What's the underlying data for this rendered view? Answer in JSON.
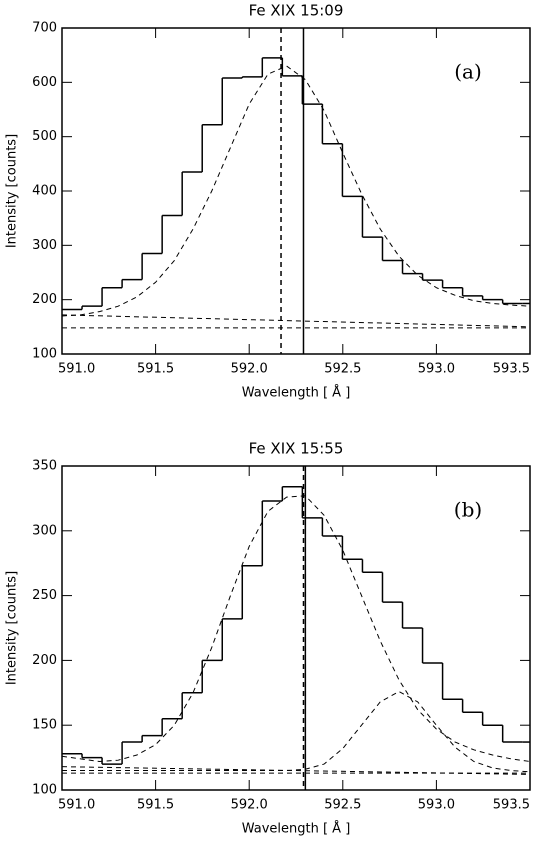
{
  "chart_data": [
    {
      "type": "spectrum",
      "title": "Fe XIX 15:09",
      "annotation": "(a)",
      "x_label": "Wavelength [ Å ]",
      "y_label": "Intensity [counts]",
      "xlim": [
        591.0,
        593.5
      ],
      "ylim": [
        100,
        700
      ],
      "xticks": [
        {
          "value": 591.0,
          "label": "591.0"
        },
        591.5,
        {
          "value": 592.0,
          "label": "592.0"
        },
        592.5,
        {
          "value": 593.0,
          "label": "593.0"
        },
        593.5
      ],
      "yticks": [
        100,
        200,
        300,
        400,
        500,
        600,
        700
      ],
      "bins": [
        591.0,
        591.107,
        591.214,
        591.321,
        591.428,
        591.535,
        591.642,
        591.749,
        591.856,
        591.963,
        592.07,
        592.177,
        592.284,
        592.391,
        592.498,
        592.605,
        592.712,
        592.819,
        592.926,
        593.033,
        593.14,
        593.247,
        593.354,
        593.461
      ],
      "counts": [
        182,
        188,
        222,
        237,
        285,
        355,
        435,
        522,
        608,
        610,
        645,
        612,
        560,
        487,
        390,
        315,
        272,
        248,
        236,
        222,
        207,
        200,
        193
      ],
      "series": [
        {
          "dashed": true,
          "x": [
            591.0,
            591.1,
            591.2,
            591.3,
            591.4,
            591.5,
            591.6,
            591.7,
            591.8,
            591.9,
            592.0,
            592.1,
            592.2,
            592.3,
            592.4,
            592.5,
            592.6,
            592.7,
            592.8,
            592.9,
            593.0,
            593.1,
            593.2,
            593.3,
            593.4,
            593.5
          ],
          "values": [
            170,
            172,
            178,
            188,
            205,
            232,
            272,
            330,
            400,
            480,
            560,
            615,
            630,
            605,
            548,
            470,
            395,
            330,
            280,
            245,
            222,
            208,
            198,
            193,
            190,
            188
          ]
        },
        {
          "dashed": true,
          "x": [
            591.0,
            593.5
          ],
          "values": [
            172,
            150
          ]
        },
        {
          "dashed": true,
          "x": [
            591.0,
            593.5
          ],
          "values": [
            148,
            148
          ]
        }
      ],
      "vlines": [
        {
          "x": 592.17,
          "dashed": true
        },
        {
          "x": 592.29,
          "dashed": false
        }
      ]
    },
    {
      "type": "spectrum",
      "title": "Fe XIX 15:55",
      "annotation": "(b)",
      "x_label": "Wavelength [ Å ]",
      "y_label": "Intensity [counts]",
      "xlim": [
        591.0,
        593.5
      ],
      "ylim": [
        100,
        350
      ],
      "xticks": [
        {
          "value": 591.0,
          "label": "591.0"
        },
        591.5,
        {
          "value": 592.0,
          "label": "592.0"
        },
        592.5,
        {
          "value": 593.0,
          "label": "593.0"
        },
        593.5
      ],
      "yticks": [
        100,
        150,
        200,
        250,
        300,
        350
      ],
      "bins": [
        591.0,
        591.107,
        591.214,
        591.321,
        591.428,
        591.535,
        591.642,
        591.749,
        591.856,
        591.963,
        592.07,
        592.177,
        592.284,
        592.391,
        592.498,
        592.605,
        592.712,
        592.819,
        592.926,
        593.033,
        593.14,
        593.247,
        593.354,
        593.461
      ],
      "counts": [
        128,
        125,
        120,
        137,
        142,
        155,
        175,
        200,
        232,
        273,
        323,
        334,
        310,
        296,
        278,
        268,
        245,
        225,
        198,
        170,
        160,
        150,
        137
      ],
      "series": [
        {
          "dashed": true,
          "x": [
            591.0,
            591.1,
            591.2,
            591.3,
            591.4,
            591.5,
            591.6,
            591.7,
            591.8,
            591.9,
            592.0,
            592.1,
            592.2,
            592.3,
            592.4,
            592.5,
            592.6,
            592.7,
            592.8,
            592.9,
            593.0,
            593.1,
            593.2,
            593.3,
            593.4,
            593.5
          ],
          "values": [
            126,
            124,
            122,
            123,
            127,
            135,
            150,
            175,
            210,
            250,
            288,
            315,
            326,
            327,
            312,
            285,
            250,
            215,
            185,
            162,
            147,
            137,
            131,
            127,
            124,
            122
          ]
        },
        {
          "dashed": true,
          "x": [
            591.0,
            591.1,
            591.2,
            591.3,
            591.4,
            591.5,
            591.6,
            591.7,
            591.8,
            591.9,
            592.0,
            592.1,
            592.2,
            592.3,
            592.4,
            592.5,
            592.6,
            592.7,
            592.8,
            592.9,
            593.0,
            593.1,
            593.2,
            593.3,
            593.4,
            593.5
          ],
          "values": [
            115,
            115,
            115,
            115,
            115,
            115,
            115,
            115,
            115,
            115,
            115,
            115,
            115,
            116,
            120,
            132,
            150,
            168,
            176,
            168,
            150,
            133,
            122,
            117,
            115,
            114
          ]
        },
        {
          "dashed": true,
          "x": [
            591.0,
            593.5
          ],
          "values": [
            118,
            112
          ]
        },
        {
          "dashed": true,
          "x": [
            591.0,
            593.5
          ],
          "values": [
            113,
            113
          ]
        }
      ],
      "vlines": [
        {
          "x": 592.29,
          "dashed": true
        },
        {
          "x": 592.3,
          "dashed": false
        }
      ]
    }
  ]
}
